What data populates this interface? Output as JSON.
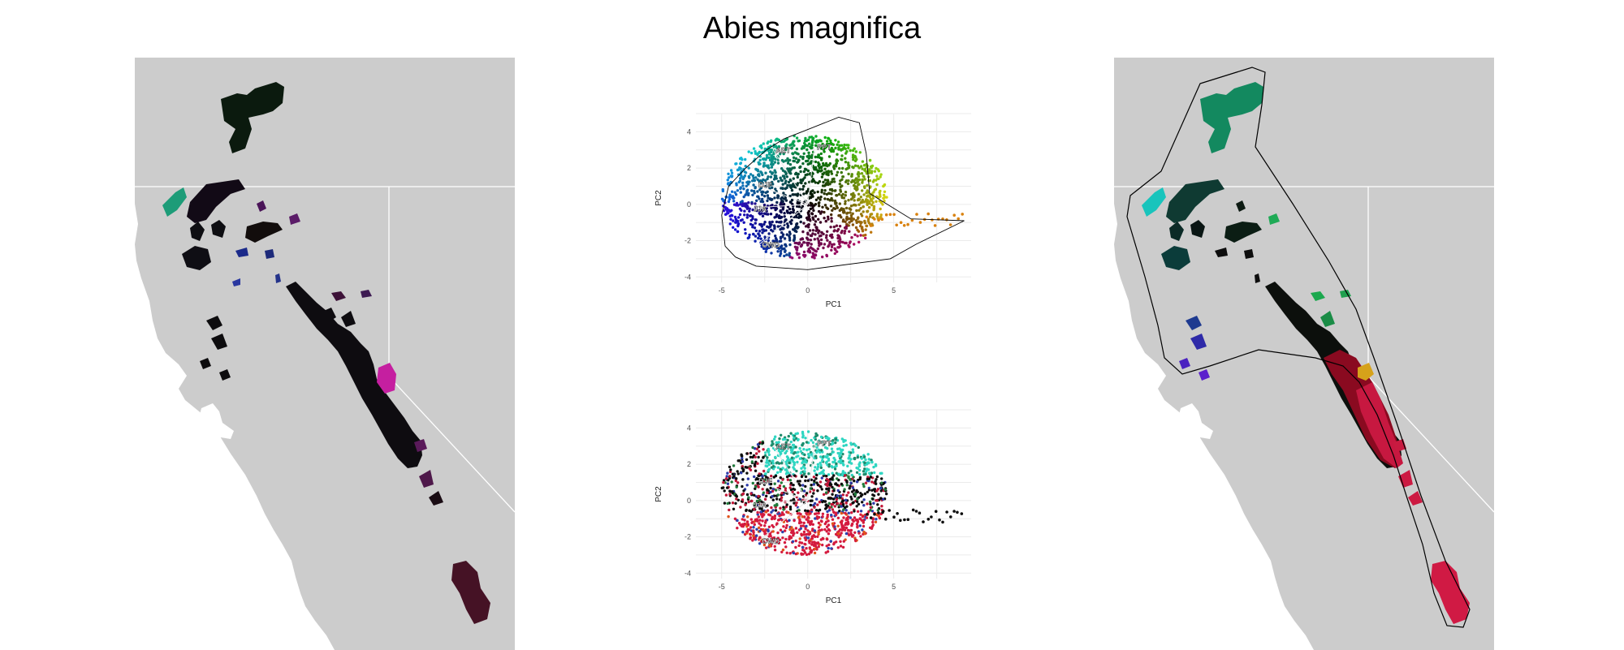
{
  "title": "Abies magnifica",
  "colors": {
    "map_land": "#cccccc",
    "map_border": "#ffffff",
    "hull_line": "#000000",
    "grid": "#ebebeb"
  },
  "chart_data": [
    {
      "type": "scatter",
      "panel": "pca-top",
      "xlabel": "PC1",
      "ylabel": "PC2",
      "xlim": [
        -6.5,
        9.5
      ],
      "ylim": [
        -4.3,
        5.0
      ],
      "x_ticks": [
        -5,
        0,
        5
      ],
      "y_ticks": [
        -4,
        -2,
        0,
        2,
        4
      ],
      "grid": true,
      "coloring": "continuous RGB by PC position (blue west, green north, magenta south, orange/red east)",
      "vectors": [
        {
          "label": "AET",
          "x": -2.0,
          "y": 3.0
        },
        {
          "label": "PPT",
          "x": 0.4,
          "y": 3.2
        },
        {
          "label": "DJF",
          "x": -3.0,
          "y": 1.1
        },
        {
          "label": "JJA",
          "x": -3.3,
          "y": -0.2
        },
        {
          "label": "CWD",
          "x": -2.8,
          "y": -2.2
        }
      ]
    },
    {
      "type": "scatter",
      "panel": "pca-bottom",
      "xlabel": "PC1",
      "ylabel": "PC2",
      "xlim": [
        -6.5,
        9.5
      ],
      "ylim": [
        -4.3,
        5.0
      ],
      "x_ticks": [
        -5,
        0,
        5
      ],
      "y_ticks": [
        -4,
        -2,
        0,
        2,
        4
      ],
      "grid": true,
      "coloring": "points colored by geographic position (teal north, black central, crimson south, blue west coast)",
      "vectors": [
        {
          "label": "AET",
          "x": -2.0,
          "y": 3.0
        },
        {
          "label": "PPT",
          "x": 0.4,
          "y": 3.2
        },
        {
          "label": "DJF",
          "x": -3.0,
          "y": 1.1
        },
        {
          "label": "JJA",
          "x": -3.3,
          "y": -0.2
        },
        {
          "label": "CWD",
          "x": -2.8,
          "y": -2.2
        }
      ]
    }
  ]
}
